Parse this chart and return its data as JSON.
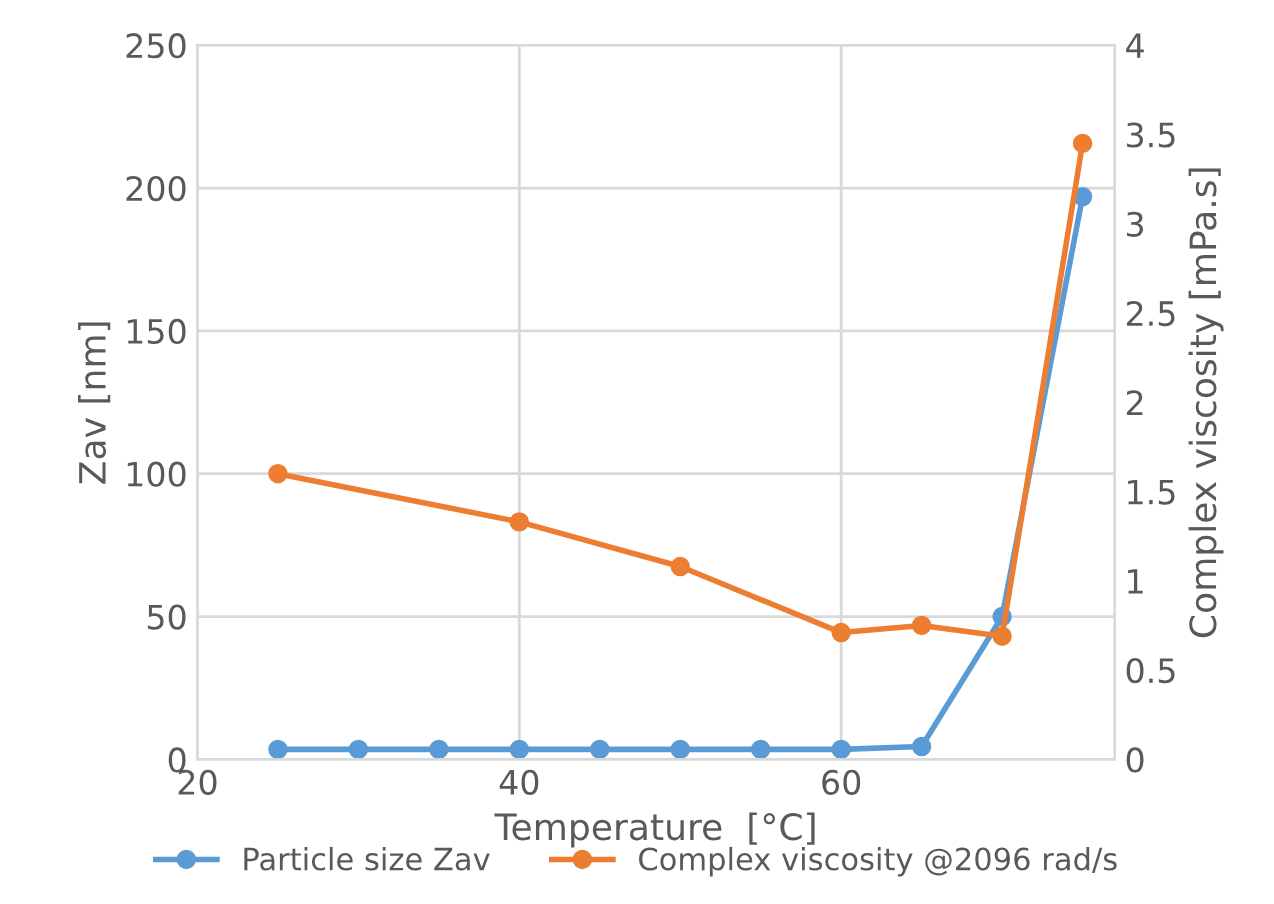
{
  "chart_data": {
    "type": "line",
    "xlabel": "Temperature  [°C]",
    "ylabel": "Zav [nm]",
    "y2label": "Complex viscosity [mPa.s]",
    "xlim": [
      20,
      77
    ],
    "xticks": [
      20,
      40,
      60
    ],
    "ylim": [
      0,
      250
    ],
    "yticks": [
      0,
      50,
      100,
      150,
      200,
      250
    ],
    "y2lim": [
      0,
      4
    ],
    "y2ticks": [
      0,
      0.5,
      1,
      1.5,
      2,
      2.5,
      3,
      3.5,
      4
    ],
    "grid": true,
    "legend": "bottom",
    "marker": "circle",
    "line_style": "solid",
    "series": [
      {
        "name": "Particle size Zav",
        "color": "#5b9bd5",
        "x": [
          25,
          30,
          35,
          40,
          45,
          50,
          55,
          60,
          65,
          70,
          75
        ],
        "values": [
          3.5,
          3.5,
          3.5,
          3.5,
          3.5,
          3.5,
          3.5,
          3.5,
          4.5,
          50,
          197
        ]
      },
      {
        "name": "Complex viscosity @2096 rad/s",
        "color": "#ed7d31",
        "axis": "y2",
        "x": [
          25,
          40,
          50,
          60,
          65,
          70,
          75
        ],
        "values": [
          1.6,
          1.33,
          1.08,
          0.71,
          0.75,
          0.69,
          3.45
        ]
      }
    ]
  }
}
